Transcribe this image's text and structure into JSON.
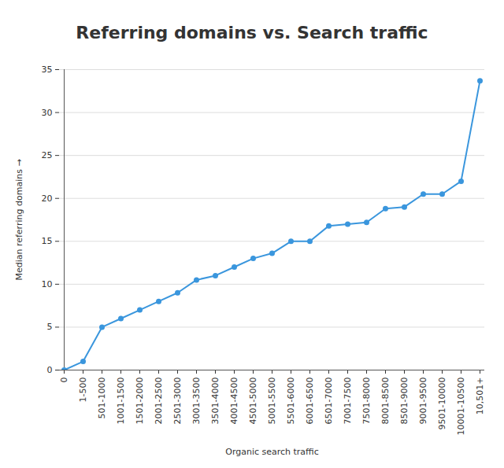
{
  "chart_data": {
    "type": "line",
    "title": "Referring domains vs. Search traffic",
    "xlabel": "Organic search traffic",
    "ylabel": "Median referring domains",
    "categories": [
      "0",
      "1-500",
      "501-1000",
      "1001-1500",
      "1501-2000",
      "2001-2500",
      "2501-3000",
      "3001-3500",
      "3501-4000",
      "4001-4500",
      "4501-5000",
      "5001-5500",
      "5501-6000",
      "6001-6500",
      "6501-7000",
      "7001-7500",
      "7501-8000",
      "8001-8500",
      "8501-9000",
      "9001-9500",
      "9501-10000",
      "10001-10500",
      "10,501+"
    ],
    "values": [
      0,
      1,
      5,
      6,
      7,
      8,
      9,
      10.5,
      11,
      12,
      13,
      13.6,
      15,
      15,
      16.8,
      17,
      17.2,
      18.8,
      19,
      20.5,
      20.5,
      22,
      33.7
    ],
    "color": "#3a96dd",
    "marker": "circle",
    "ylim": [
      0,
      35
    ],
    "yticks": [
      0,
      5,
      10,
      15,
      20,
      25,
      30,
      35
    ],
    "grid": true
  }
}
